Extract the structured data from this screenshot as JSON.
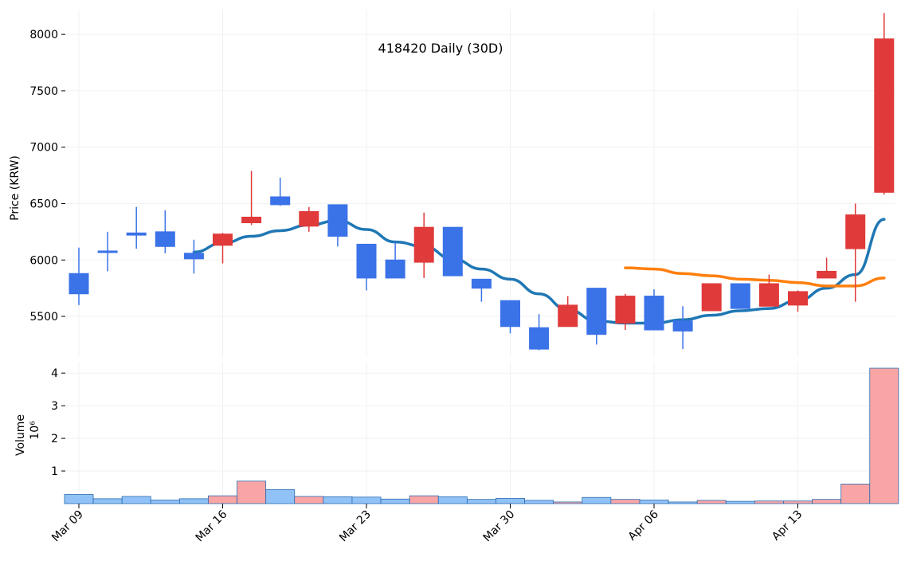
{
  "chart_data": {
    "type": "candlestick",
    "title": "418420 Daily (30D)",
    "ylabel": "Price (KRW)",
    "volume_label": "Volume",
    "volume_exponent_label": "10⁶",
    "ylim": [
      5140,
      8220
    ],
    "volume_ylim": [
      0,
      4.2
    ],
    "price_ticks": [
      5500,
      6000,
      6500,
      7000,
      7500,
      8000
    ],
    "volume_ticks": [
      1,
      2,
      3,
      4
    ],
    "x_tick_labels": [
      {
        "label": "Mar 09",
        "index": 0
      },
      {
        "label": "Mar 16",
        "index": 5
      },
      {
        "label": "Mar 23",
        "index": 10
      },
      {
        "label": "Mar 30",
        "index": 15
      },
      {
        "label": "Apr 06",
        "index": 20
      },
      {
        "label": "Apr 13",
        "index": 25
      }
    ],
    "colors": {
      "up": "#e03a3a",
      "down": "#3a72e8",
      "ma_short": "#1f77b4",
      "ma_long": "#ff7f0e",
      "vol_up": "#f9a5a5",
      "vol_down": "#90c2f7"
    },
    "candles": [
      {
        "open": 5880,
        "high": 6110,
        "low": 5600,
        "close": 5700,
        "volume": 0.28
      },
      {
        "open": 6080,
        "high": 6250,
        "low": 5900,
        "close": 6070,
        "volume": 0.15
      },
      {
        "open": 6240,
        "high": 6470,
        "low": 6100,
        "close": 6220,
        "volume": 0.22
      },
      {
        "open": 6250,
        "high": 6440,
        "low": 6060,
        "close": 6120,
        "volume": 0.11
      },
      {
        "open": 6060,
        "high": 6180,
        "low": 5880,
        "close": 6010,
        "volume": 0.15
      },
      {
        "open": 6130,
        "high": 6240,
        "low": 5970,
        "close": 6230,
        "volume": 0.24
      },
      {
        "open": 6330,
        "high": 6790,
        "low": 6310,
        "close": 6380,
        "volume": 0.69
      },
      {
        "open": 6560,
        "high": 6730,
        "low": 6480,
        "close": 6490,
        "volume": 0.43
      },
      {
        "open": 6300,
        "high": 6470,
        "low": 6250,
        "close": 6430,
        "volume": 0.22
      },
      {
        "open": 6490,
        "high": 6490,
        "low": 6120,
        "close": 6210,
        "volume": 0.21
      },
      {
        "open": 6140,
        "high": 6140,
        "low": 5730,
        "close": 5840,
        "volume": 0.2
      },
      {
        "open": 6000,
        "high": 6160,
        "low": 5840,
        "close": 5840,
        "volume": 0.14
      },
      {
        "open": 5980,
        "high": 6420,
        "low": 5840,
        "close": 6290,
        "volume": 0.24
      },
      {
        "open": 6290,
        "high": 6290,
        "low": 5860,
        "close": 5860,
        "volume": 0.21
      },
      {
        "open": 5830,
        "high": 5830,
        "low": 5630,
        "close": 5750,
        "volume": 0.13
      },
      {
        "open": 5640,
        "high": 5640,
        "low": 5350,
        "close": 5410,
        "volume": 0.16
      },
      {
        "open": 5400,
        "high": 5520,
        "low": 5200,
        "close": 5210,
        "volume": 0.1
      },
      {
        "open": 5410,
        "high": 5680,
        "low": 5410,
        "close": 5600,
        "volume": 0.05
      },
      {
        "open": 5750,
        "high": 5750,
        "low": 5250,
        "close": 5340,
        "volume": 0.19
      },
      {
        "open": 5440,
        "high": 5700,
        "low": 5380,
        "close": 5680,
        "volume": 0.13
      },
      {
        "open": 5680,
        "high": 5740,
        "low": 5380,
        "close": 5380,
        "volume": 0.11
      },
      {
        "open": 5460,
        "high": 5590,
        "low": 5210,
        "close": 5370,
        "volume": 0.05
      },
      {
        "open": 5550,
        "high": 5790,
        "low": 5550,
        "close": 5790,
        "volume": 0.1
      },
      {
        "open": 5790,
        "high": 5790,
        "low": 5570,
        "close": 5570,
        "volume": 0.07
      },
      {
        "open": 5590,
        "high": 5870,
        "low": 5590,
        "close": 5790,
        "volume": 0.08
      },
      {
        "open": 5600,
        "high": 5730,
        "low": 5540,
        "close": 5720,
        "volume": 0.08
      },
      {
        "open": 5840,
        "high": 6020,
        "low": 5840,
        "close": 5900,
        "volume": 0.13
      },
      {
        "open": 6100,
        "high": 6500,
        "low": 5630,
        "close": 6400,
        "volume": 0.6
      },
      {
        "open": 6600,
        "high": 8190,
        "low": 6580,
        "close": 7960,
        "volume": 4.15
      }
    ],
    "ma_short": [
      null,
      null,
      null,
      null,
      6070,
      6150,
      6210,
      6260,
      6310,
      6350,
      6270,
      6160,
      6120,
      6010,
      5920,
      5830,
      5700,
      5560,
      5460,
      5440,
      5440,
      5470,
      5510,
      5550,
      5570,
      5640,
      5750,
      5870,
      6360
    ],
    "ma_long": [
      null,
      null,
      null,
      null,
      null,
      null,
      null,
      null,
      null,
      null,
      null,
      null,
      null,
      null,
      null,
      null,
      null,
      null,
      null,
      5930,
      5920,
      5880,
      5860,
      5830,
      5820,
      5800,
      5770,
      5770,
      5840
    ]
  }
}
